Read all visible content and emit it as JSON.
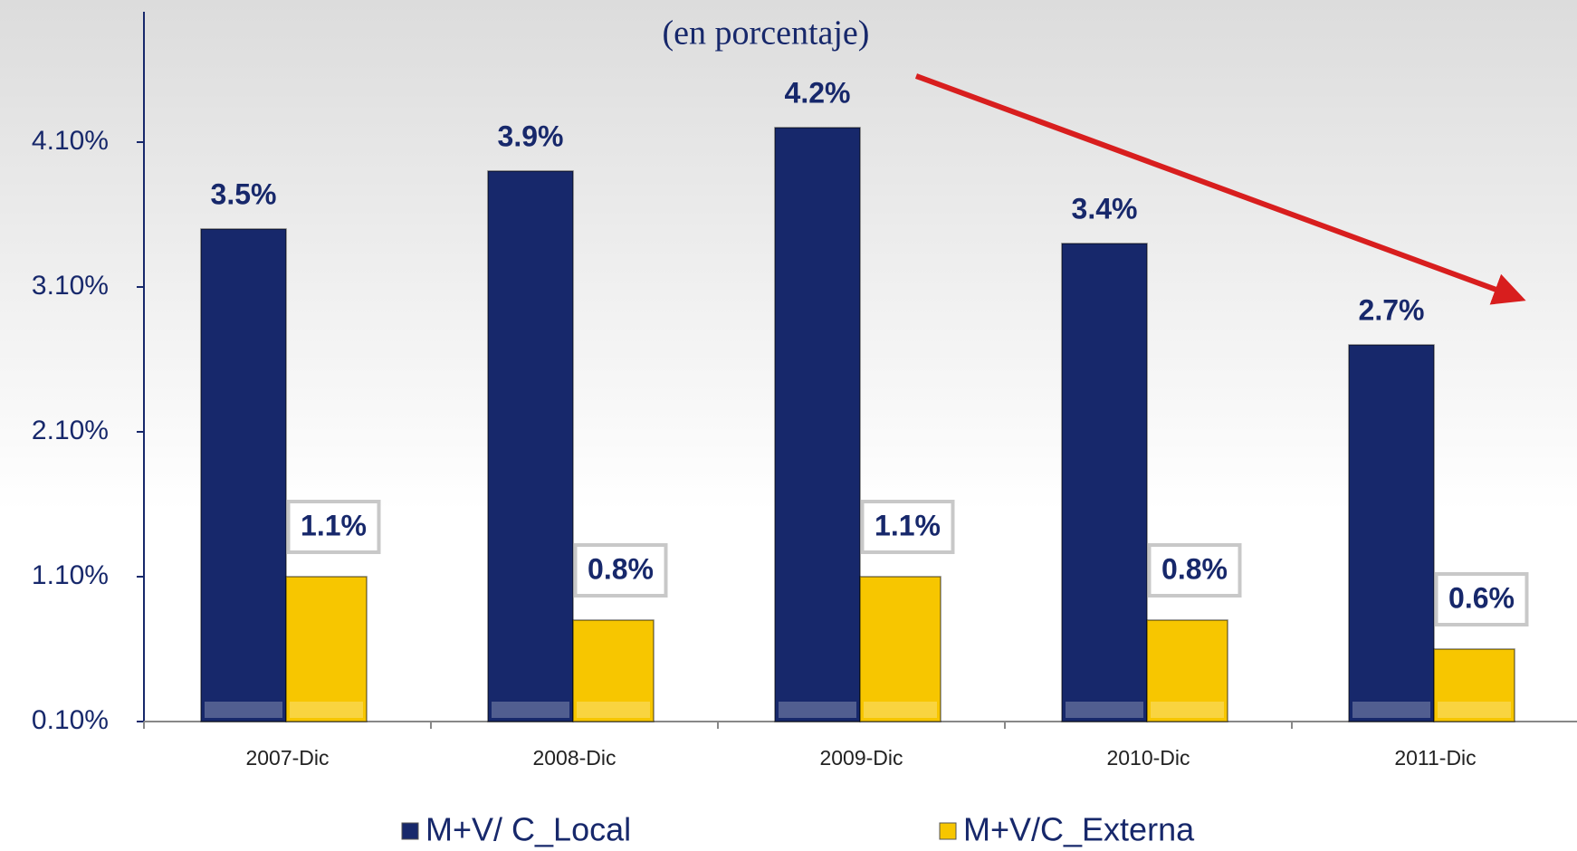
{
  "chart_data": {
    "type": "bar",
    "title": "(en porcentaje)",
    "categories": [
      "2007-Dic",
      "2008-Dic",
      "2009-Dic",
      "2010-Dic",
      "2011-Dic"
    ],
    "series": [
      {
        "name": "M+V/ C_Local",
        "color": "#17286b",
        "values": [
          3.5,
          3.9,
          4.2,
          3.4,
          2.7
        ],
        "value_labels": [
          "3.5%",
          "3.9%",
          "4.2%",
          "3.4%",
          "2.7%"
        ]
      },
      {
        "name": "M+V/C_Externa",
        "color": "#f7c600",
        "values": [
          1.1,
          0.8,
          1.1,
          0.8,
          0.6
        ],
        "value_labels": [
          "1.1%",
          "0.8%",
          "1.1%",
          "0.8%",
          "0.6%"
        ]
      }
    ],
    "ylim": [
      0.1,
      5.0
    ],
    "yticks": [
      {
        "value": 0.1,
        "label": "0.10%"
      },
      {
        "value": 1.1,
        "label": "1.10%"
      },
      {
        "value": 2.1,
        "label": "2.10%"
      },
      {
        "value": 3.1,
        "label": "3.10%"
      },
      {
        "value": 4.1,
        "label": "4.10%"
      }
    ],
    "legend": "bottom"
  }
}
